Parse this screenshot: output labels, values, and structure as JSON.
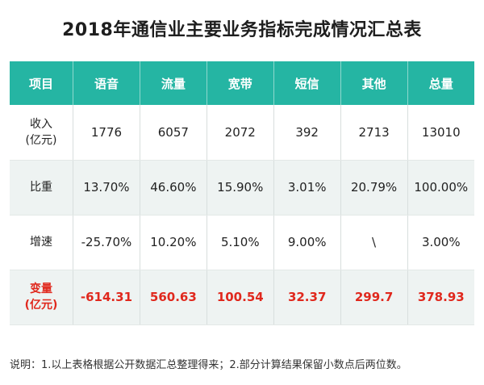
{
  "title": "2018年通信业主要业务指标完成情况汇总表",
  "table": {
    "headers": [
      "项目",
      "语音",
      "流量",
      "宽带",
      "短信",
      "其他",
      "总量"
    ],
    "rows": [
      {
        "label_line1": "收入",
        "label_line2": "(亿元)",
        "values": [
          "1776",
          "6057",
          "2072",
          "392",
          "2713",
          "13010"
        ]
      },
      {
        "label_line1": "比重",
        "label_line2": "",
        "values": [
          "13.70%",
          "46.60%",
          "15.90%",
          "3.01%",
          "20.79%",
          "100.00%"
        ]
      },
      {
        "label_line1": "增速",
        "label_line2": "",
        "values": [
          "-25.70%",
          "10.20%",
          "5.10%",
          "9.00%",
          "\\",
          "3.00%"
        ]
      },
      {
        "label_line1": "变量",
        "label_line2": "(亿元)",
        "values": [
          "-614.31",
          "560.63",
          "100.54",
          "32.37",
          "299.7",
          "378.93"
        ]
      }
    ]
  },
  "note": "说明：1.以上表格根据公开数据汇总整理得来；2.部分计算结果保留小数点后两位数。",
  "colors": {
    "header_bg": "#25b5a3",
    "highlight_text": "#e0281d"
  }
}
